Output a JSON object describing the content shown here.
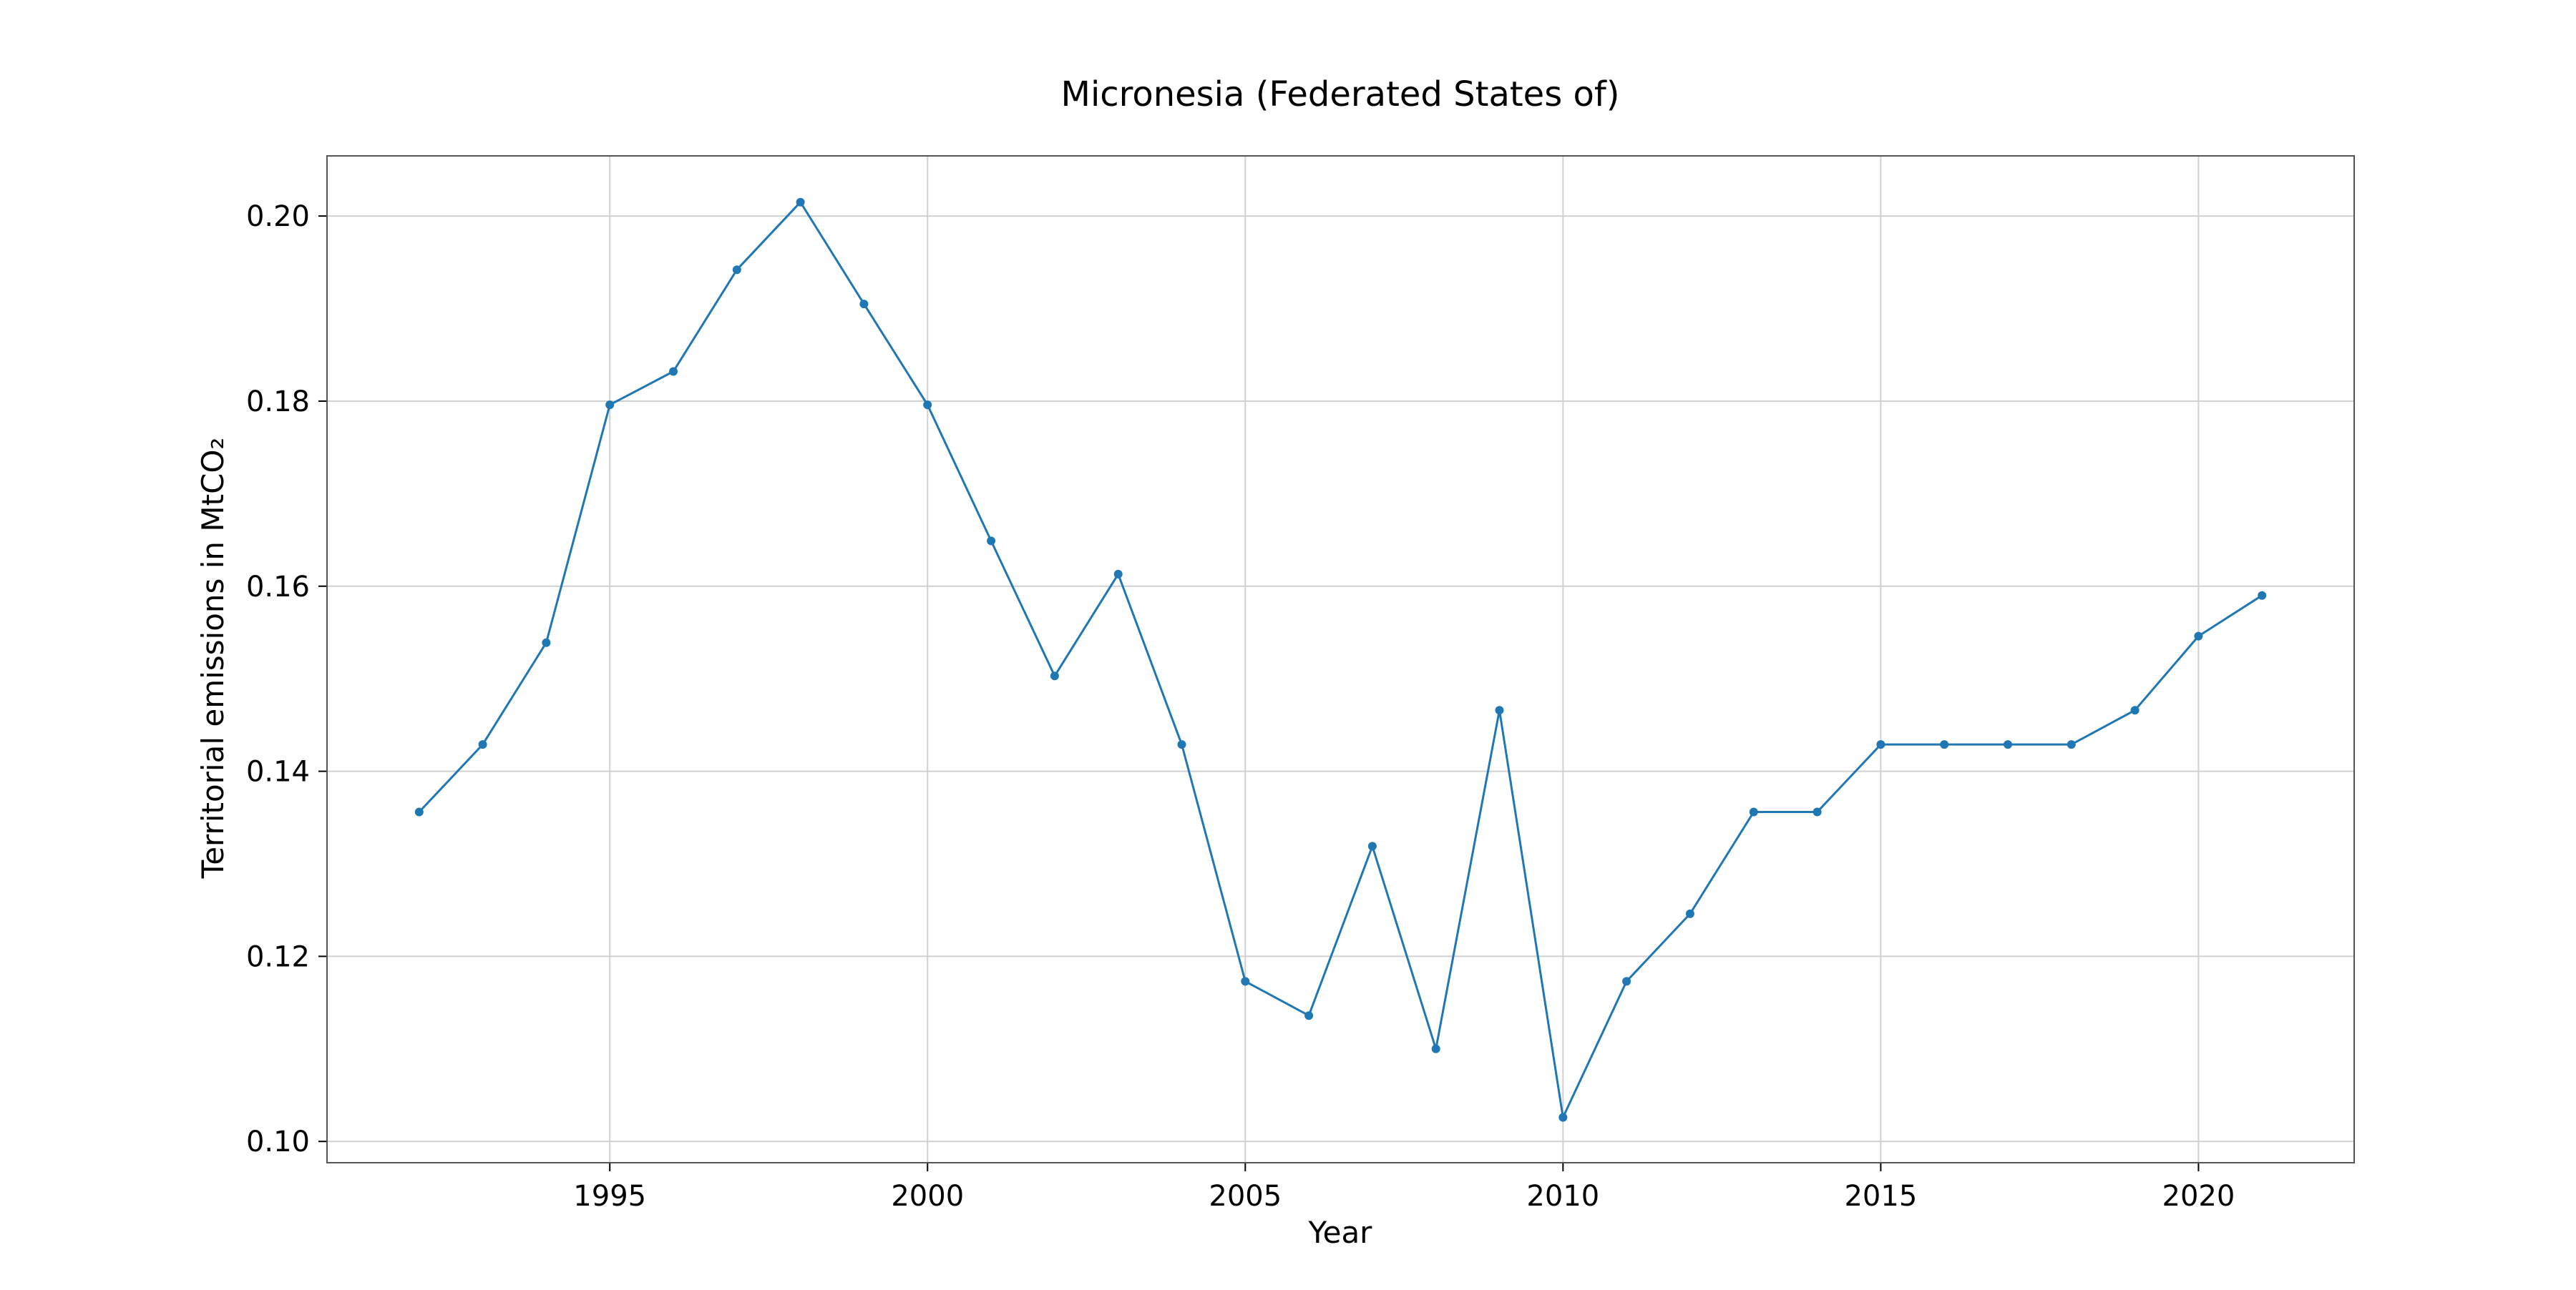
{
  "chart_data": {
    "type": "line",
    "title": "Micronesia (Federated States of)",
    "xlabel": "Year",
    "ylabel": "Territorial emissions in MtCO₂",
    "xlim": [
      1990.55,
      2022.45
    ],
    "ylim": [
      0.0977,
      0.2065
    ],
    "x_ticks": [
      1995,
      2000,
      2005,
      2010,
      2015,
      2020
    ],
    "y_ticks": [
      0.1,
      0.12,
      0.14,
      0.16,
      0.18,
      0.2
    ],
    "y_tick_labels": [
      "0.10",
      "0.12",
      "0.14",
      "0.16",
      "0.18",
      "0.20"
    ],
    "grid": true,
    "series": [
      {
        "color": "#1f77b4",
        "x": [
          1992,
          1993,
          1994,
          1995,
          1996,
          1997,
          1998,
          1999,
          2000,
          2001,
          2002,
          2003,
          2004,
          2005,
          2006,
          2007,
          2008,
          2009,
          2010,
          2011,
          2012,
          2013,
          2014,
          2015,
          2016,
          2017,
          2018,
          2019,
          2020,
          2021
        ],
        "y": [
          0.1356,
          0.1429,
          0.1539,
          0.1796,
          0.1832,
          0.1942,
          0.2015,
          0.1905,
          0.1796,
          0.1649,
          0.1503,
          0.1613,
          0.1429,
          0.1173,
          0.1136,
          0.1319,
          0.11,
          0.1466,
          0.1026,
          0.1173,
          0.1246,
          0.1356,
          0.1356,
          0.1429,
          0.1429,
          0.1429,
          0.1429,
          0.1466,
          0.1546,
          0.159
        ]
      }
    ]
  }
}
